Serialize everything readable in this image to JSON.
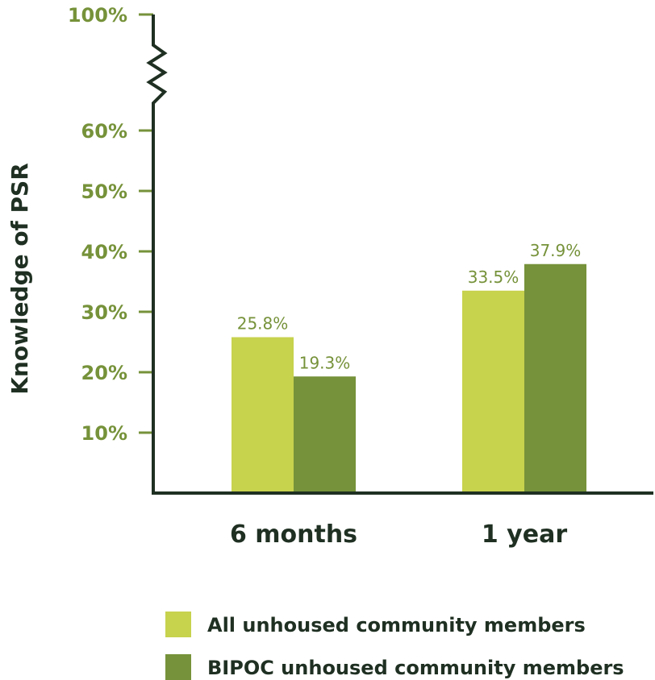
{
  "colors": {
    "axis": "#1f3022",
    "tick_label": "#76923a",
    "value_label": "#76923a",
    "category_label": "#1f3022",
    "all_series": "#c7d24d",
    "bipoc_series": "#76923a"
  },
  "chart_data": {
    "type": "bar",
    "ylabel": "Knowledge of PSR",
    "categories": [
      "6 months",
      "1 year"
    ],
    "series": [
      {
        "name": "All unhoused community members",
        "values": [
          25.8,
          33.5
        ],
        "labels": [
          "25.8%",
          "33.5%"
        ]
      },
      {
        "name": "BIPOC unhoused community members",
        "values": [
          19.3,
          37.9
        ],
        "labels": [
          "19.3%",
          "37.9%"
        ]
      }
    ],
    "yticks": [
      {
        "value": 10,
        "label": "10%"
      },
      {
        "value": 20,
        "label": "20%"
      },
      {
        "value": 30,
        "label": "30%"
      },
      {
        "value": 40,
        "label": "40%"
      },
      {
        "value": 50,
        "label": "50%"
      },
      {
        "value": 60,
        "label": "60%"
      },
      {
        "value": 100,
        "label": "100%"
      }
    ],
    "axis_break": "between 60% and 100%",
    "ylim": [
      0,
      100
    ],
    "grid": false,
    "legend_position": "bottom"
  }
}
